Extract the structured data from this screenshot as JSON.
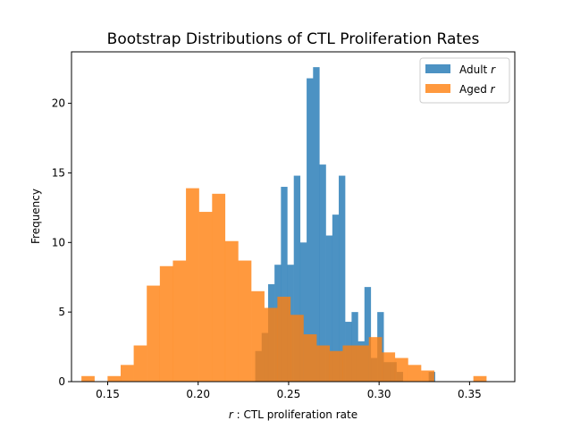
{
  "chart_data": {
    "type": "histogram",
    "title": "Bootstrap Distributions of CTL Proliferation Rates",
    "xlabel_italic": "r",
    "xlabel_rest": " : CTL proliferation rate",
    "ylabel": "Frequency",
    "xlim": [
      0.13,
      0.375
    ],
    "ylim": [
      0,
      23.7
    ],
    "xticks": [
      0.15,
      0.2,
      0.25,
      0.3,
      0.35
    ],
    "xtick_labels": [
      "0.15",
      "0.20",
      "0.25",
      "0.30",
      "0.35"
    ],
    "yticks": [
      0,
      5,
      10,
      15,
      20
    ],
    "ytick_labels": [
      "0",
      "5",
      "10",
      "15",
      "20"
    ],
    "legend_position": "top-right",
    "series": [
      {
        "name": "Adult",
        "name_italic": "r",
        "color": "#1f77b4",
        "opacity": 0.8,
        "bin_start": 0.228,
        "bin_width": 0.00355,
        "values": [
          0,
          2.2,
          3.5,
          7.0,
          8.4,
          14.0,
          8.4,
          14.8,
          10.0,
          21.8,
          22.6,
          15.6,
          10.5,
          12.0,
          14.8,
          4.3,
          5.0,
          2.9,
          6.8,
          1.7,
          5.0,
          1.4,
          1.4,
          0.7,
          0,
          0,
          0,
          0,
          0.7
        ]
      },
      {
        "name": "Aged",
        "name_italic": "r",
        "color": "#ff7f0e",
        "opacity": 0.8,
        "bin_start": 0.1355,
        "bin_width": 0.00722,
        "values": [
          0.4,
          0,
          0.4,
          1.2,
          2.6,
          6.9,
          8.3,
          8.7,
          13.9,
          12.2,
          13.5,
          10.1,
          8.7,
          6.5,
          5.3,
          6.1,
          4.8,
          3.4,
          2.6,
          2.2,
          2.6,
          2.6,
          3.2,
          2.1,
          1.7,
          1.2,
          0.8,
          0,
          0,
          0,
          0.4
        ]
      }
    ]
  }
}
